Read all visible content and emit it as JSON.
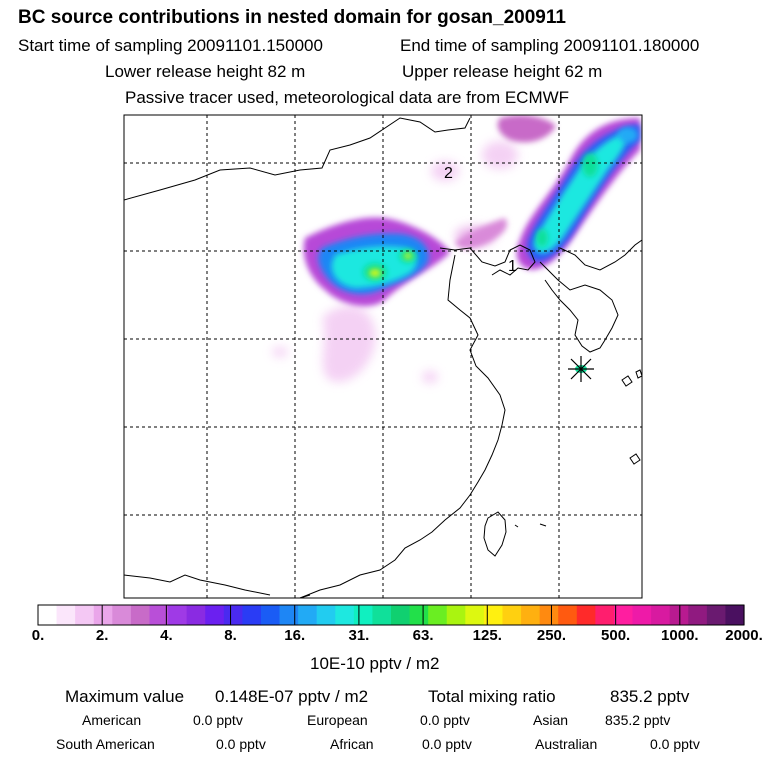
{
  "header": {
    "title": "BC  source contributions in nested domain for gosan_200911",
    "start_label": "Start time of sampling 20091101.150000",
    "end_label": "End time of sampling 20091101.180000",
    "lower_label": "Lower release height   82 m",
    "upper_label": "Upper release height   62 m",
    "note": "Passive tracer used, meteorological data are from ECMWF"
  },
  "map": {
    "markers": [
      "1",
      "2"
    ],
    "receptor_symbol": "star"
  },
  "chart_data": {
    "type": "heatmap",
    "title": "BC  source contributions in nested domain for gosan_200911",
    "colorbar": {
      "ticks": [
        "0.",
        "2.",
        "4.",
        "8.",
        "16.",
        "31.",
        "63.",
        "125.",
        "250.",
        "500.",
        "1000.",
        "2000."
      ],
      "unit": "10E-10 pptv / m2",
      "colors": [
        "#ffffff",
        "#fbe6fb",
        "#f4c8f4",
        "#eaa6ea",
        "#d98ad9",
        "#c86bc8",
        "#b94fd8",
        "#9f3ae6",
        "#8a2be2",
        "#6b20f0",
        "#4a2af0",
        "#2a3cf5",
        "#1a5cf5",
        "#1e86f5",
        "#22aaf5",
        "#22ccf0",
        "#1ee8e0",
        "#10f0c0",
        "#10e09a",
        "#10d070",
        "#22e04a",
        "#6aee22",
        "#aaf410",
        "#ddf810",
        "#fff010",
        "#ffd010",
        "#ffb010",
        "#ff8a10",
        "#ff5a10",
        "#ff2a2a",
        "#ff1e6e",
        "#ff1ea0",
        "#ee1aa8",
        "#d81aa0",
        "#b81a90",
        "#901a80",
        "#6a1a70",
        "#4a1060"
      ]
    },
    "maximum_value": "0.148E-07 pptv / m2",
    "total_mixing_ratio": "835.2 pptv",
    "regions": [
      {
        "name": "American",
        "value": "0.0 pptv"
      },
      {
        "name": "European",
        "value": "0.0 pptv"
      },
      {
        "name": "Asian",
        "value": "835.2 pptv"
      },
      {
        "name": "South American",
        "value": "0.0 pptv"
      },
      {
        "name": "African",
        "value": "0.0 pptv"
      },
      {
        "name": "Australian",
        "value": "0.0 pptv"
      }
    ]
  },
  "summary": {
    "max_label": "Maximum value",
    "max_value": "0.148E-07 pptv / m2",
    "total_label": "Total mixing ratio",
    "total_value": "835.2 pptv"
  }
}
